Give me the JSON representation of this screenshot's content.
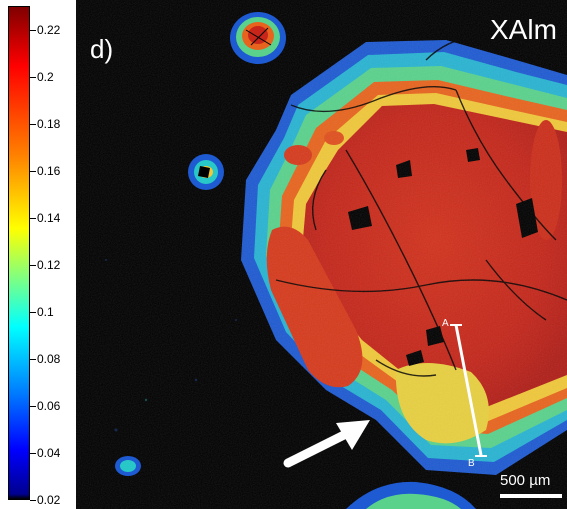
{
  "colorbar": {
    "ticks": [
      "0.22",
      "0.2",
      "0.18",
      "0.16",
      "0.14",
      "0.12",
      "0.1",
      "0.08",
      "0.06",
      "0.04",
      "0.02"
    ],
    "range": [
      0.02,
      0.23
    ],
    "colormap": "jet"
  },
  "panel": {
    "label": "d)",
    "title": "XAlm"
  },
  "profile": {
    "start_label": "A",
    "end_label": "B"
  },
  "scale_bar": {
    "label": "500 µm"
  },
  "colors": {
    "background": "#000000",
    "core": "#c8261a",
    "rim_high": "#e84a1e",
    "mid": "#ffd23a",
    "low": "#28c8c8",
    "outer": "#1e5ad2",
    "annotation": "#ffffff"
  }
}
